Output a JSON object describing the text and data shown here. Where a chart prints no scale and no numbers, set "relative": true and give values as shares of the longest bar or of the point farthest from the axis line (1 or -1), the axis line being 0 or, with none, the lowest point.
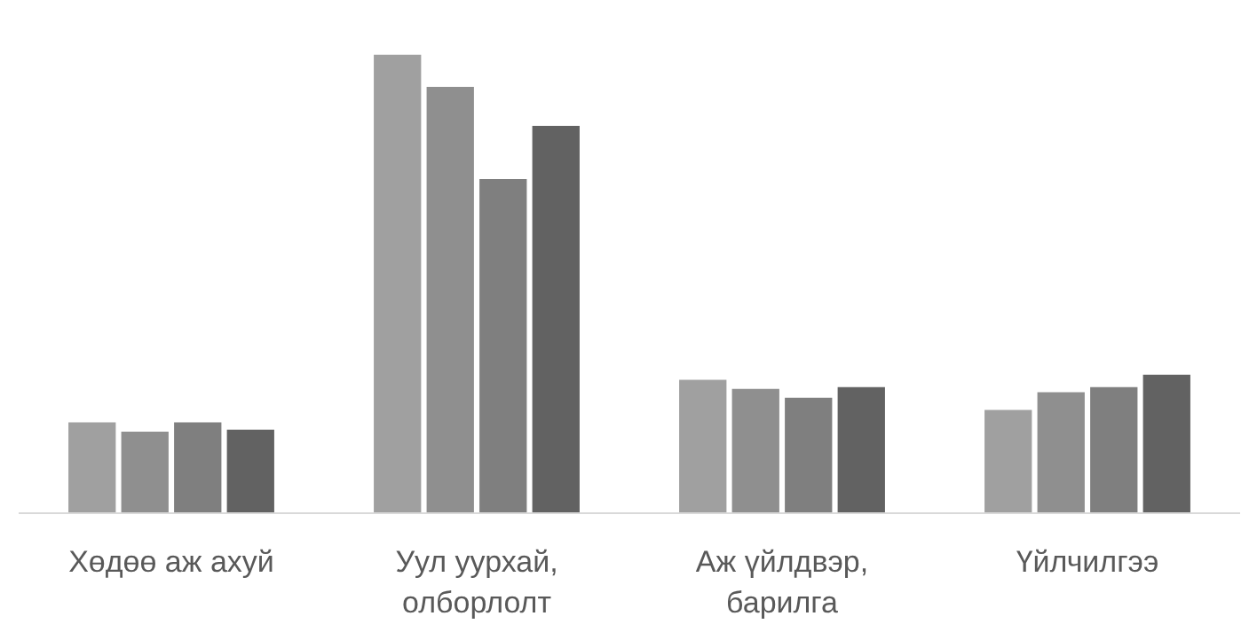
{
  "chart_data": {
    "type": "bar",
    "relative": true,
    "categories": [
      "Хөдөө аж ахуй",
      "Уул уурхай,\nолборлолт",
      "Аж үйлдвэр,\nбарилга",
      "Үйлчилгээ"
    ],
    "series": [
      {
        "color": "#a0a0a0",
        "values": [
          0.198,
          1,
          0.291,
          0.225
        ]
      },
      {
        "color": "#8f8f8f",
        "values": [
          0.178,
          0.93,
          0.271,
          0.264
        ]
      },
      {
        "color": "#7f7f7f",
        "values": [
          0.198,
          0.729,
          0.252,
          0.275
        ]
      },
      {
        "color": "#626262",
        "values": [
          0.182,
          0.845,
          0.275,
          0.302
        ]
      }
    ],
    "grid": false
  }
}
